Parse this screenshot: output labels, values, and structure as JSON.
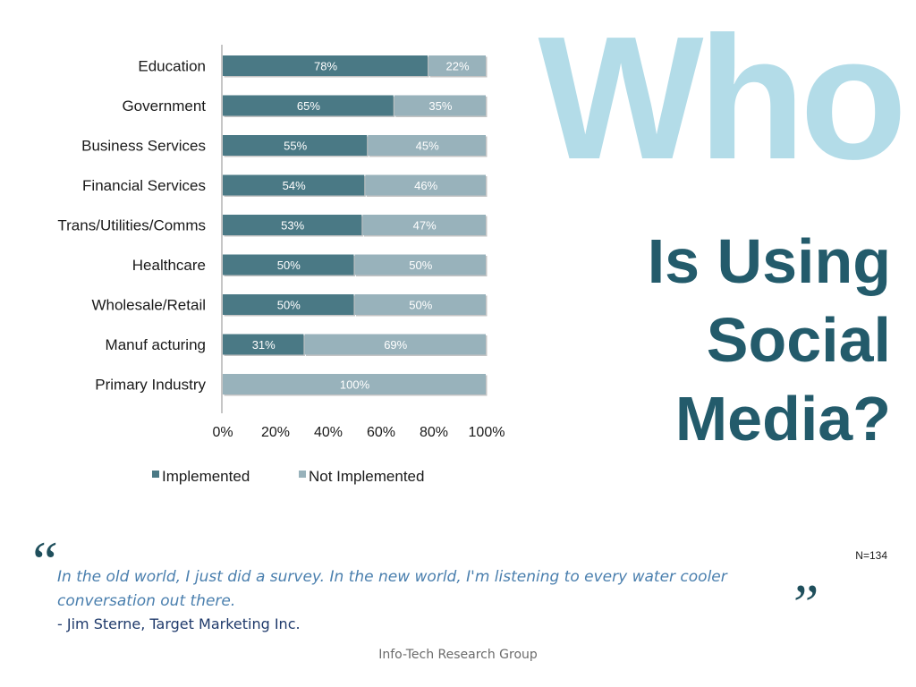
{
  "title_main": "Who",
  "title_lines": [
    "Is Using",
    "Social",
    "Media?"
  ],
  "sample_note": "N=134",
  "quote": {
    "open_mark": "“",
    "text": "In the old world, I just did a survey.  In the new world, I'm listening to every water cooler conversation out there.",
    "author": "- Jim Sterne, Target Marketing Inc.",
    "close_mark": "”"
  },
  "footer": "Info-Tech Research Group",
  "colors": {
    "implemented": "#4a7985",
    "not_implemented": "#98b2bb",
    "title_light": "#b3dce8",
    "title_dark": "#235b6b"
  },
  "chart_data": {
    "type": "bar",
    "orientation": "horizontal",
    "stacking": "percent",
    "categories": [
      "Education",
      "Government",
      "Business Services",
      "Financial Services",
      "Trans/Utilities/Comms",
      "Healthcare",
      "Wholesale/Retail",
      "Manuf acturing",
      "Primary Industry"
    ],
    "series": [
      {
        "name": "Implemented",
        "values": [
          78,
          65,
          55,
          54,
          53,
          50,
          50,
          31,
          0
        ],
        "labels": [
          "78%",
          "65%",
          "55%",
          "54%",
          "53%",
          "50%",
          "50%",
          "31%",
          ""
        ]
      },
      {
        "name": "Not Implemented",
        "values": [
          22,
          35,
          45,
          46,
          47,
          50,
          50,
          69,
          100
        ],
        "labels": [
          "22%",
          "35%",
          "45%",
          "46%",
          "47%",
          "50%",
          "50%",
          "69%",
          "100%"
        ]
      }
    ],
    "xlim": [
      0,
      100
    ],
    "xticks": [
      "0%",
      "20%",
      "40%",
      "60%",
      "80%",
      "100%"
    ],
    "grid": false,
    "legend_position": "bottom"
  }
}
